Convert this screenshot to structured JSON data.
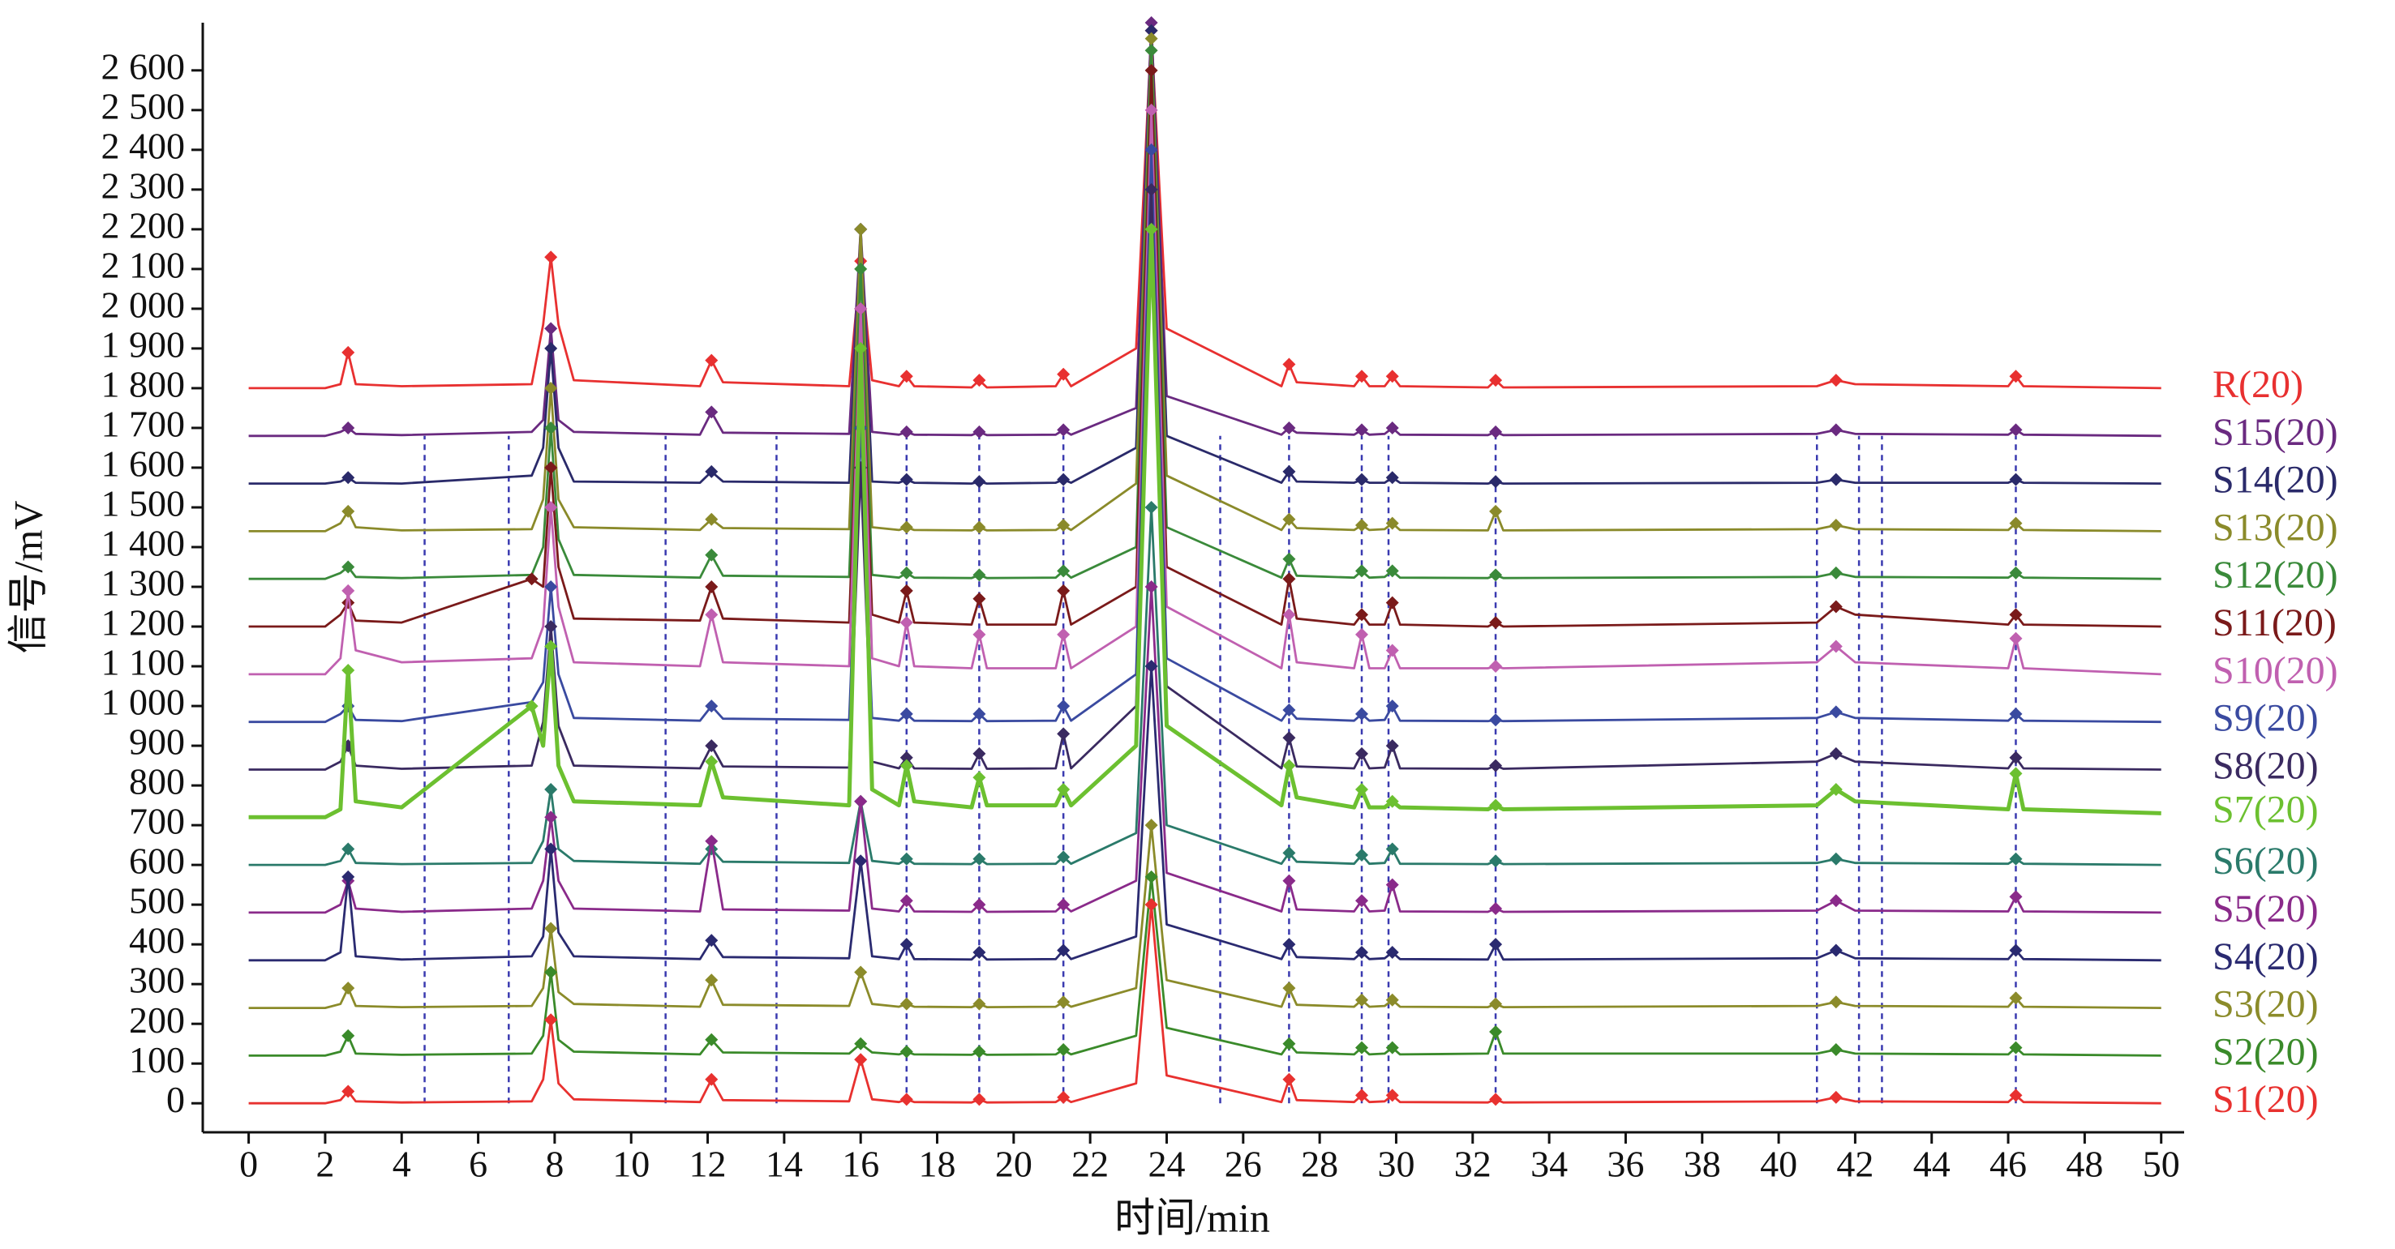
{
  "chart_data": {
    "type": "line",
    "xlabel": "时间/min",
    "ylabel": "信号/mV",
    "xlim": [
      -1.2,
      50.6
    ],
    "ylim": [
      -73,
      2720
    ],
    "xticks": [
      0,
      2,
      4,
      6,
      8,
      10,
      12,
      14,
      16,
      18,
      20,
      22,
      24,
      26,
      28,
      30,
      32,
      34,
      36,
      38,
      40,
      42,
      44,
      46,
      48,
      50
    ],
    "yticks": [
      0,
      100,
      200,
      300,
      400,
      500,
      600,
      700,
      800,
      900,
      {
        "value": 1000,
        "label": "1 000"
      },
      {
        "value": 1100,
        "label": "1 100"
      },
      {
        "value": 1200,
        "label": "1 200"
      },
      {
        "value": 1300,
        "label": "1 300"
      },
      {
        "value": 1400,
        "label": "1 400"
      },
      {
        "value": 1500,
        "label": "1 500"
      },
      {
        "value": 1600,
        "label": "1 600"
      },
      {
        "value": 1700,
        "label": "1 700"
      },
      {
        "value": 1800,
        "label": "1 800"
      },
      {
        "value": 1900,
        "label": "1 900"
      },
      {
        "value": 2000,
        "label": "2 000"
      },
      {
        "value": 2100,
        "label": "2 100"
      },
      {
        "value": 2200,
        "label": "2 200"
      },
      {
        "value": 2300,
        "label": "2 300"
      },
      {
        "value": 2400,
        "label": "2 400"
      },
      {
        "value": 2500,
        "label": "2 500"
      },
      {
        "value": 2600,
        "label": "2 600"
      }
    ],
    "reference_times": [
      4.6,
      6.8,
      10.9,
      13.8,
      17.2,
      19.1,
      21.3,
      25.4,
      27.2,
      29.1,
      29.8,
      32.6,
      41.0,
      42.1,
      42.7,
      46.2
    ],
    "x": [
      0,
      2,
      2.4,
      2.6,
      2.8,
      4,
      7.4,
      7.7,
      7.9,
      8.1,
      8.5,
      11.8,
      12.1,
      12.4,
      15.7,
      16.0,
      16.3,
      17.0,
      17.2,
      17.4,
      18.9,
      19.1,
      19.3,
      21.1,
      21.3,
      21.5,
      23.2,
      23.6,
      24.0,
      27.0,
      27.2,
      27.4,
      28.9,
      29.1,
      29.3,
      29.7,
      29.9,
      30.1,
      32.4,
      32.6,
      32.8,
      41.0,
      41.5,
      42.0,
      46.0,
      46.2,
      46.4,
      50
    ],
    "series": [
      {
        "name": "S1(20)",
        "color": "#e8312f",
        "values": [
          0,
          0,
          8,
          30,
          5,
          2,
          5,
          60,
          210,
          50,
          10,
          3,
          60,
          8,
          5,
          110,
          10,
          3,
          10,
          3,
          2,
          10,
          2,
          3,
          15,
          3,
          50,
          500,
          70,
          3,
          60,
          8,
          3,
          20,
          3,
          5,
          20,
          3,
          2,
          10,
          2,
          5,
          15,
          5,
          3,
          20,
          3,
          0
        ]
      },
      {
        "name": "S2(20)",
        "color": "#3a8a2a",
        "values": [
          120,
          120,
          130,
          170,
          125,
          122,
          125,
          170,
          330,
          160,
          130,
          123,
          160,
          128,
          125,
          150,
          128,
          123,
          130,
          123,
          122,
          130,
          122,
          123,
          135,
          123,
          170,
          570,
          190,
          123,
          150,
          128,
          123,
          140,
          123,
          125,
          140,
          123,
          125,
          180,
          125,
          125,
          135,
          125,
          123,
          140,
          123,
          120
        ]
      },
      {
        "name": "S3(20)",
        "color": "#8b8b2a",
        "values": [
          240,
          240,
          250,
          290,
          245,
          242,
          245,
          290,
          440,
          280,
          250,
          243,
          310,
          248,
          245,
          330,
          250,
          243,
          250,
          243,
          242,
          250,
          242,
          243,
          255,
          243,
          290,
          700,
          310,
          243,
          290,
          248,
          243,
          260,
          243,
          245,
          260,
          243,
          242,
          250,
          242,
          245,
          255,
          245,
          243,
          265,
          243,
          240
        ]
      },
      {
        "name": "S4(20)",
        "color": "#2a2a70",
        "values": [
          360,
          360,
          380,
          570,
          370,
          362,
          370,
          420,
          640,
          430,
          370,
          363,
          410,
          368,
          365,
          610,
          370,
          363,
          400,
          363,
          362,
          380,
          362,
          363,
          385,
          363,
          420,
          1100,
          450,
          363,
          400,
          368,
          363,
          380,
          363,
          365,
          380,
          363,
          362,
          400,
          362,
          365,
          385,
          365,
          363,
          385,
          363,
          360
        ]
      },
      {
        "name": "S5(20)",
        "color": "#8a2a8a",
        "values": [
          480,
          480,
          500,
          560,
          490,
          482,
          490,
          560,
          720,
          560,
          490,
          483,
          660,
          488,
          485,
          760,
          490,
          483,
          510,
          483,
          482,
          500,
          482,
          483,
          500,
          483,
          560,
          1300,
          580,
          483,
          560,
          488,
          483,
          510,
          483,
          485,
          550,
          483,
          482,
          490,
          482,
          485,
          510,
          485,
          483,
          520,
          483,
          480
        ]
      },
      {
        "name": "S6(20)",
        "color": "#2a7a6a",
        "values": [
          600,
          600,
          610,
          640,
          605,
          602,
          605,
          660,
          790,
          640,
          610,
          603,
          640,
          608,
          605,
          760,
          610,
          603,
          615,
          603,
          602,
          615,
          602,
          603,
          620,
          603,
          680,
          1500,
          700,
          603,
          630,
          608,
          603,
          625,
          603,
          605,
          640,
          603,
          602,
          610,
          602,
          605,
          615,
          605,
          603,
          615,
          603,
          600
        ]
      },
      {
        "name": "S7(20)",
        "color": "#6cc030",
        "values": [
          720,
          720,
          740,
          1090,
          760,
          745,
          1000,
          900,
          1150,
          850,
          760,
          750,
          860,
          770,
          750,
          1900,
          790,
          750,
          850,
          760,
          745,
          820,
          750,
          750,
          790,
          750,
          900,
          2200,
          950,
          750,
          850,
          770,
          745,
          790,
          745,
          745,
          760,
          745,
          740,
          750,
          740,
          750,
          790,
          760,
          740,
          830,
          740,
          730
        ]
      },
      {
        "name": "S8(20)",
        "color": "#3a2a60",
        "values": [
          840,
          840,
          860,
          900,
          850,
          842,
          850,
          960,
          1200,
          950,
          850,
          843,
          900,
          848,
          845,
          1600,
          860,
          843,
          870,
          843,
          842,
          880,
          842,
          843,
          930,
          843,
          1000,
          2300,
          1050,
          843,
          920,
          848,
          843,
          880,
          843,
          845,
          900,
          843,
          842,
          850,
          842,
          860,
          880,
          860,
          843,
          870,
          843,
          840
        ]
      },
      {
        "name": "S9(20)",
        "color": "#3a4aa0",
        "values": [
          960,
          960,
          980,
          1000,
          965,
          962,
          1010,
          1060,
          1300,
          1080,
          970,
          963,
          1000,
          968,
          965,
          1700,
          970,
          963,
          980,
          963,
          962,
          980,
          962,
          963,
          1000,
          963,
          1080,
          2400,
          1120,
          963,
          990,
          968,
          963,
          980,
          963,
          965,
          1000,
          963,
          962,
          965,
          962,
          970,
          985,
          970,
          963,
          980,
          963,
          960
        ]
      },
      {
        "name": "S10(20)",
        "color": "#c060b0",
        "values": [
          1080,
          1080,
          1120,
          1290,
          1140,
          1110,
          1120,
          1200,
          1500,
          1250,
          1110,
          1100,
          1230,
          1110,
          1100,
          2000,
          1120,
          1100,
          1210,
          1100,
          1095,
          1180,
          1095,
          1095,
          1180,
          1095,
          1200,
          2500,
          1250,
          1095,
          1230,
          1110,
          1095,
          1180,
          1095,
          1095,
          1140,
          1095,
          1095,
          1100,
          1095,
          1110,
          1150,
          1110,
          1095,
          1170,
          1095,
          1080
        ]
      },
      {
        "name": "S11(20)",
        "color": "#7a1a1a",
        "values": [
          1200,
          1200,
          1230,
          1260,
          1215,
          1210,
          1320,
          1300,
          1600,
          1350,
          1220,
          1215,
          1300,
          1220,
          1210,
          2000,
          1230,
          1210,
          1290,
          1210,
          1205,
          1270,
          1205,
          1205,
          1290,
          1205,
          1300,
          2600,
          1350,
          1205,
          1320,
          1220,
          1205,
          1230,
          1205,
          1205,
          1260,
          1205,
          1200,
          1210,
          1200,
          1210,
          1250,
          1230,
          1205,
          1230,
          1205,
          1200
        ]
      },
      {
        "name": "S12(20)",
        "color": "#3a8a3a",
        "values": [
          1320,
          1320,
          1335,
          1350,
          1325,
          1322,
          1330,
          1400,
          1700,
          1420,
          1330,
          1323,
          1380,
          1328,
          1325,
          2100,
          1330,
          1323,
          1335,
          1323,
          1322,
          1330,
          1322,
          1323,
          1340,
          1323,
          1400,
          2650,
          1450,
          1323,
          1370,
          1328,
          1323,
          1340,
          1323,
          1325,
          1340,
          1323,
          1322,
          1330,
          1322,
          1325,
          1335,
          1325,
          1323,
          1335,
          1323,
          1320
        ]
      },
      {
        "name": "S13(20)",
        "color": "#8a8a2a",
        "values": [
          1440,
          1440,
          1460,
          1490,
          1450,
          1442,
          1445,
          1520,
          1800,
          1520,
          1450,
          1443,
          1470,
          1448,
          1445,
          2200,
          1450,
          1443,
          1450,
          1443,
          1442,
          1450,
          1442,
          1443,
          1455,
          1443,
          1560,
          2680,
          1580,
          1443,
          1470,
          1448,
          1443,
          1455,
          1443,
          1445,
          1460,
          1443,
          1442,
          1490,
          1442,
          1445,
          1455,
          1445,
          1443,
          1460,
          1443,
          1440
        ]
      },
      {
        "name": "S14(20)",
        "color": "#2a2a6a",
        "values": [
          1560,
          1560,
          1565,
          1575,
          1562,
          1560,
          1580,
          1650,
          1900,
          1650,
          1565,
          1562,
          1590,
          1565,
          1562,
          2200,
          1565,
          1562,
          1570,
          1562,
          1560,
          1565,
          1560,
          1562,
          1570,
          1562,
          1650,
          2700,
          1680,
          1562,
          1590,
          1565,
          1562,
          1570,
          1562,
          1562,
          1575,
          1562,
          1560,
          1565,
          1560,
          1562,
          1570,
          1562,
          1562,
          1570,
          1562,
          1560
        ]
      },
      {
        "name": "S15(20)",
        "color": "#6a2a80",
        "values": [
          1680,
          1680,
          1690,
          1700,
          1685,
          1682,
          1690,
          1720,
          1950,
          1720,
          1690,
          1683,
          1740,
          1688,
          1685,
          2200,
          1690,
          1683,
          1690,
          1683,
          1682,
          1690,
          1682,
          1683,
          1695,
          1683,
          1750,
          2720,
          1780,
          1683,
          1700,
          1688,
          1683,
          1695,
          1683,
          1685,
          1700,
          1683,
          1682,
          1690,
          1682,
          1685,
          1695,
          1685,
          1683,
          1695,
          1683,
          1680
        ]
      },
      {
        "name": "R(20)",
        "color": "#e83030",
        "values": [
          1800,
          1800,
          1810,
          1890,
          1810,
          1805,
          1810,
          1960,
          2130,
          1960,
          1820,
          1805,
          1870,
          1815,
          1805,
          2120,
          1820,
          1805,
          1830,
          1805,
          1802,
          1820,
          1802,
          1805,
          1835,
          1805,
          1900,
          2700,
          1950,
          1805,
          1860,
          1815,
          1805,
          1830,
          1805,
          1805,
          1830,
          1805,
          1802,
          1820,
          1802,
          1805,
          1820,
          1810,
          1805,
          1830,
          1805,
          1800
        ]
      }
    ]
  }
}
